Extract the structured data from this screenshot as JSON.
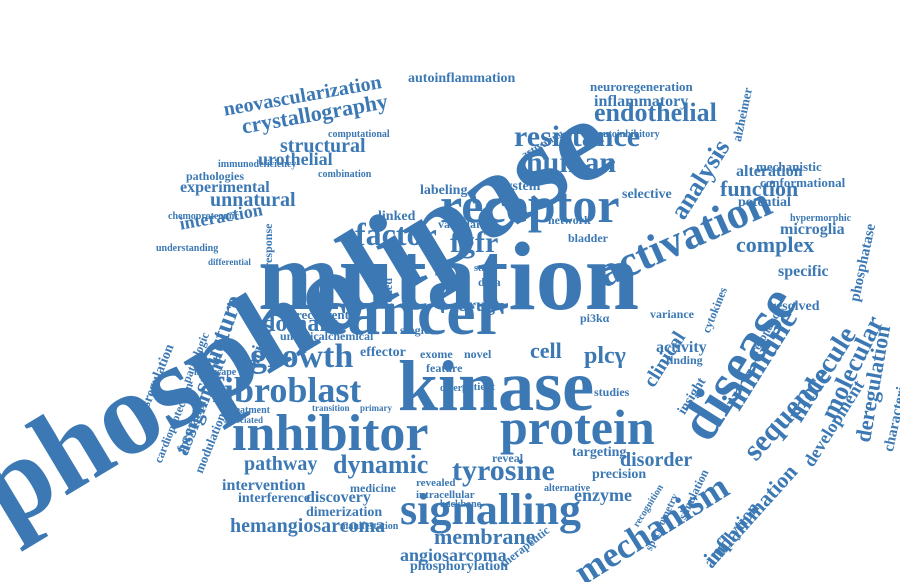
{
  "cloud": {
    "color": "#3c79b4",
    "words": {
      "phospholipase": "phospholipase",
      "mutation": "mutation",
      "cancer": "cancer",
      "kinase": "kinase",
      "inhibitor": "inhibitor",
      "protein": "protein",
      "receptor": "receptor",
      "disease": "disease",
      "signalling": "signalling",
      "activation": "activation",
      "fibroblast": "fibroblast",
      "growth": "growth",
      "tyrosine": "tyrosine",
      "mechanism": "mechanism",
      "immune": "immune",
      "molecule": "molecule",
      "sequence": "sequence",
      "molecular": "molecular",
      "human": "human",
      "resistance": "resistance",
      "endothelial": "endothelial",
      "factor": "factor",
      "fgfr": "fgfr",
      "domain": "domain",
      "complex": "complex",
      "structure": "structure",
      "hemangiosarcoma": "hemangiosarcoma",
      "membrane": "membrane",
      "angiosarcoma": "angiosarcoma",
      "phosphorylation": "phosphorylation",
      "dynamic": "dynamic",
      "pathway": "pathway",
      "disorder": "disorder",
      "enzyme": "enzyme",
      "deregulation": "deregulation",
      "inflammation": "inflammation",
      "development": "development",
      "characterization": "characterization",
      "phosphatase": "phosphatase",
      "amplytion": "amplytion",
      "analysis": "analysis",
      "function": "function",
      "alteration": "alteration",
      "inflammatory": "inflammatory",
      "autoinflammation": "autoinflammation",
      "neovascularization": "neovascularization",
      "crystallography": "crystallography",
      "structural": "structural",
      "urothelial": "urothelial",
      "unnatural": "unnatural",
      "experimental": "experimental",
      "interaction": "interaction",
      "assignment": "assignment",
      "variant": "variant",
      "intervention": "intervention",
      "interference": "interference",
      "discovery": "discovery",
      "dimerization": "dimerization",
      "medicine": "medicine",
      "microglia": "microglia",
      "specific": "specific",
      "resolved": "resolved",
      "conformational": "conformational",
      "mechanistic": "mechanistic",
      "selective": "selective",
      "labeling": "labeling",
      "system": "system",
      "linked": "linked",
      "clinical": "clinical",
      "activity": "activity",
      "cell": "cell",
      "plcy": "plcγ",
      "drug": "drug",
      "effector": "effector",
      "recurrent": "recurrent",
      "umbilicalchemical": "umbilicalchemical",
      "reveal": "reveal",
      "targeting": "targeting",
      "precision": "precision",
      "potential": "potential",
      "formation": "formation",
      "modulation": "modulation",
      "dysregulation": "dysregulation",
      "cardioprotection": "cardioprotection",
      "pathologic": "pathologic",
      "response": "response",
      "neuroregeneration": "neuroregeneration",
      "alzheimer": "alzheimer",
      "insight": "insight",
      "pathologies": "pathologies",
      "immunodeficiency": "immunodeficiency",
      "combination": "combination",
      "computational": "computational",
      "autoinhibitory": "autoinhibitory",
      "network": "network",
      "exome": "exome",
      "feature": "feature",
      "novel": "novel",
      "single": "single",
      "studies": "studies",
      "finding": "finding",
      "variance": "variance",
      "cytokines": "cytokines",
      "pi3ka": "pi3kα",
      "revealed": "revealed",
      "intracellular": "intracellular",
      "patient": "patient",
      "diverse": "diverse",
      "therapeutic": "therapeutic",
      "simulation": "simulation",
      "resonance": "resonance",
      "manifestation": "manifestation",
      "backbone": "backbone",
      "alternative": "alternative",
      "treatment": "treatment",
      "associated": "associated",
      "transition": "transition",
      "primary": "primary",
      "vascular": "vascular",
      "bladder": "bladder",
      "data": "data",
      "study": "study",
      "encoded": "encoded",
      "landscape": "landscape",
      "chemoproteomic": "chemoproteomic",
      "understanding": "understanding",
      "differential": "differential",
      "hypermorphic": "hypermorphic",
      "spectrometry": "spectrometry",
      "recognition": "recognition",
      "activating": "activating"
    }
  }
}
